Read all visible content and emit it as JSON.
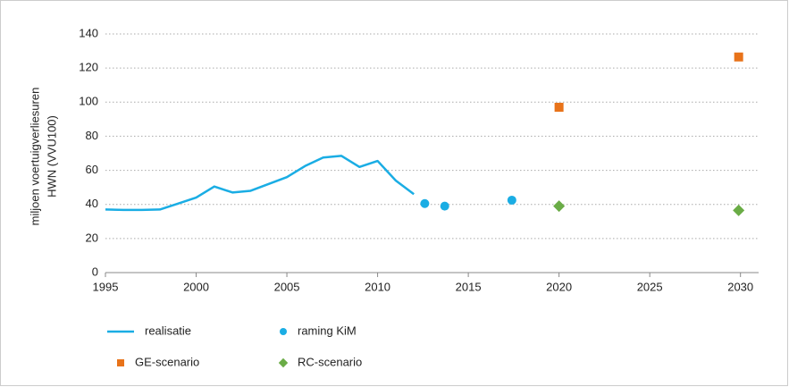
{
  "chart_data": {
    "type": "line",
    "ylabel": [
      "miljoen voertuigverliesuren",
      "HWN (VVU100)"
    ],
    "xlim": [
      1995,
      2031
    ],
    "xticks": [
      1995,
      2000,
      2005,
      2010,
      2015,
      2020,
      2025,
      2030
    ],
    "ylim": [
      0,
      140
    ],
    "yticks": [
      0,
      20,
      40,
      60,
      80,
      100,
      120,
      140
    ],
    "grid": true,
    "series": [
      {
        "name": "realisatie",
        "color": "#1aade4",
        "marker": "line",
        "x": [
          1995,
          1996,
          1997,
          1998,
          1999,
          2000,
          2001,
          2002,
          2003,
          2004,
          2005,
          2006,
          2007,
          2008,
          2009,
          2010,
          2011,
          2012
        ],
        "values": [
          37,
          36.8,
          36.8,
          37,
          40.5,
          44,
          50.5,
          47,
          48,
          52,
          56,
          62.5,
          67.5,
          68.5,
          62,
          65.5,
          54,
          46
        ]
      },
      {
        "name": "raming KiM",
        "color": "#1aade4",
        "marker": "circle",
        "x": [
          2012.6,
          2013.7,
          2017.4
        ],
        "values": [
          40.5,
          39,
          42.5
        ]
      },
      {
        "name": "GE-scenario",
        "color": "#e8731a",
        "marker": "square",
        "x": [
          2020,
          2029.9
        ],
        "values": [
          97,
          126.5
        ]
      },
      {
        "name": "RC-scenario",
        "color": "#6aac46",
        "marker": "diamond",
        "x": [
          2020,
          2029.9
        ],
        "values": [
          39,
          36.5
        ]
      }
    ]
  }
}
